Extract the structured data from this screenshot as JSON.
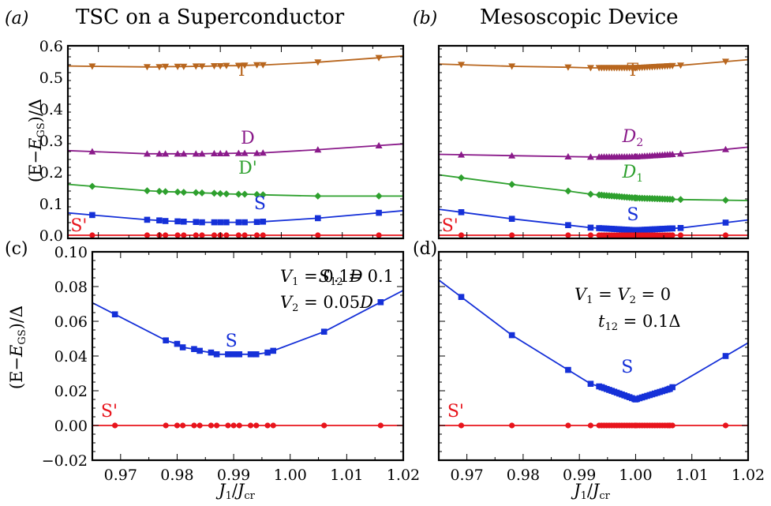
{
  "titles": {
    "a": "TSC on a Superconductor",
    "b": "Mesoscopic Device"
  },
  "panel_labels": {
    "a": "(a)",
    "b": "(b)",
    "c": "(c)",
    "d": "(d)"
  },
  "ylabels": {
    "top": "(E−E_GS)/Δ",
    "bottom": "(E−E_GS)/Δ"
  },
  "xlabel": "J_1/J_cr",
  "annotations": {
    "c": {
      "line1a": "V_1 = 0.1D",
      "line1b": "S_12 = 0.1",
      "line2": "V_2 = 0.05D"
    },
    "d": {
      "line1": "V_1 = V_2 = 0",
      "line2": "t_12 = 0.1Δ"
    }
  },
  "colors": {
    "T": "#b8661e",
    "D": "#8a1a8a",
    "Dp": "#2ea02e",
    "S": "#1530d8",
    "Sp": "#e8141c"
  },
  "chart_data": [
    {
      "id": "a",
      "type": "line",
      "xlim": [
        0.965,
        1.02
      ],
      "ylim": [
        -0.01,
        0.6
      ],
      "yticks": [
        "0.0",
        "0.1",
        "0.2",
        "0.3",
        "0.4",
        "0.5",
        "0.6"
      ],
      "series": [
        {
          "name": "T",
          "key": "T",
          "marker": "tri-down",
          "x": [
            0.969,
            0.978,
            0.98,
            0.981,
            0.983,
            0.984,
            0.986,
            0.987,
            0.989,
            0.99,
            0.991,
            0.993,
            0.994,
            0.996,
            0.997,
            1.006,
            1.016
          ],
          "y": [
            0.535,
            0.533,
            0.533,
            0.534,
            0.534,
            0.534,
            0.535,
            0.535,
            0.536,
            0.536,
            0.537,
            0.537,
            0.538,
            0.539,
            0.539,
            0.548,
            0.562
          ]
        },
        {
          "name": "D",
          "key": "D",
          "marker": "tri-up",
          "x": [
            0.969,
            0.978,
            0.98,
            0.981,
            0.983,
            0.984,
            0.986,
            0.987,
            0.989,
            0.99,
            0.991,
            0.993,
            0.994,
            0.996,
            0.997,
            1.006,
            1.016
          ],
          "y": [
            0.265,
            0.258,
            0.258,
            0.258,
            0.258,
            0.258,
            0.258,
            0.258,
            0.259,
            0.259,
            0.259,
            0.26,
            0.26,
            0.26,
            0.261,
            0.271,
            0.284
          ]
        },
        {
          "name": "D'",
          "key": "Dp",
          "marker": "diamond",
          "x": [
            0.969,
            0.978,
            0.98,
            0.981,
            0.983,
            0.984,
            0.986,
            0.987,
            0.989,
            0.99,
            0.991,
            0.993,
            0.994,
            0.996,
            0.997,
            1.006,
            1.016
          ],
          "y": [
            0.155,
            0.141,
            0.139,
            0.138,
            0.137,
            0.136,
            0.135,
            0.134,
            0.133,
            0.132,
            0.131,
            0.13,
            0.13,
            0.129,
            0.128,
            0.124,
            0.124
          ]
        },
        {
          "name": "S",
          "key": "S",
          "marker": "square",
          "x": [
            0.969,
            0.978,
            0.98,
            0.981,
            0.983,
            0.984,
            0.986,
            0.987,
            0.989,
            0.99,
            0.991,
            0.993,
            0.994,
            0.996,
            0.997,
            1.006,
            1.016
          ],
          "y": [
            0.064,
            0.049,
            0.047,
            0.045,
            0.044,
            0.043,
            0.042,
            0.041,
            0.041,
            0.041,
            0.041,
            0.041,
            0.041,
            0.042,
            0.043,
            0.054,
            0.071
          ]
        },
        {
          "name": "S'",
          "key": "Sp",
          "marker": "circle",
          "x": [
            0.969,
            0.978,
            0.98,
            0.981,
            0.983,
            0.984,
            0.986,
            0.987,
            0.989,
            0.99,
            0.991,
            0.993,
            0.994,
            0.996,
            0.997,
            1.006,
            1.016
          ],
          "y": [
            0,
            0,
            0,
            0,
            0,
            0,
            0,
            0,
            0,
            0,
            0,
            0,
            0,
            0,
            0,
            0,
            0
          ]
        }
      ],
      "labels": {
        "T": "T",
        "D": "D",
        "Dp": "D'",
        "S": "S",
        "Sp": "S'"
      }
    },
    {
      "id": "b",
      "type": "line",
      "xlim": [
        0.965,
        1.02
      ],
      "ylim": [
        -0.01,
        0.6
      ],
      "series": [
        {
          "name": "T",
          "key": "T",
          "marker": "tri-down",
          "dense": true,
          "x": [
            0.969,
            0.978,
            0.988,
            0.992,
            1.0,
            1.008,
            1.016
          ],
          "y": [
            0.54,
            0.535,
            0.532,
            0.53,
            0.53,
            0.538,
            0.55
          ]
        },
        {
          "name": "D_2",
          "key": "D",
          "marker": "tri-up",
          "dense": true,
          "x": [
            0.969,
            0.978,
            0.988,
            0.992,
            1.0,
            1.008,
            1.016
          ],
          "y": [
            0.255,
            0.252,
            0.249,
            0.248,
            0.249,
            0.258,
            0.272
          ]
        },
        {
          "name": "D_1",
          "key": "Dp",
          "marker": "diamond",
          "dense": true,
          "x": [
            0.969,
            0.978,
            0.988,
            0.992,
            1.0,
            1.008,
            1.016
          ],
          "y": [
            0.182,
            0.161,
            0.14,
            0.13,
            0.118,
            0.113,
            0.111
          ]
        },
        {
          "name": "S",
          "key": "S",
          "marker": "square",
          "dense": true,
          "x": [
            0.969,
            0.978,
            0.988,
            0.992,
            1.0,
            1.008,
            1.016
          ],
          "y": [
            0.073,
            0.052,
            0.032,
            0.024,
            0.016,
            0.023,
            0.04
          ]
        },
        {
          "name": "S'",
          "key": "Sp",
          "marker": "circle",
          "dense": true,
          "x": [
            0.969,
            0.978,
            0.988,
            0.992,
            1.0,
            1.008,
            1.016
          ],
          "y": [
            0,
            0,
            0,
            0,
            0,
            0,
            0
          ]
        }
      ],
      "labels": {
        "T": "T",
        "D": "D_2",
        "Dp": "D_1",
        "S": "S",
        "Sp": "S'"
      }
    },
    {
      "id": "c",
      "type": "line",
      "xlim": [
        0.965,
        1.02
      ],
      "ylim": [
        -0.02,
        0.1
      ],
      "xticks": [
        "0.97",
        "0.98",
        "0.99",
        "1.00",
        "1.01",
        "1.02"
      ],
      "yticks": [
        "−0.02",
        "0.00",
        "0.02",
        "0.04",
        "0.06",
        "0.08",
        "0.10"
      ],
      "series": [
        {
          "name": "S",
          "key": "S",
          "marker": "square",
          "x": [
            0.969,
            0.978,
            0.98,
            0.981,
            0.983,
            0.984,
            0.986,
            0.987,
            0.989,
            0.99,
            0.991,
            0.993,
            0.994,
            0.996,
            0.997,
            1.006,
            1.016
          ],
          "y": [
            0.064,
            0.049,
            0.047,
            0.045,
            0.044,
            0.043,
            0.042,
            0.041,
            0.041,
            0.041,
            0.041,
            0.041,
            0.041,
            0.042,
            0.043,
            0.054,
            0.071
          ]
        },
        {
          "name": "S'",
          "key": "Sp",
          "marker": "circle",
          "x": [
            0.969,
            0.978,
            0.98,
            0.981,
            0.983,
            0.984,
            0.986,
            0.987,
            0.989,
            0.99,
            0.991,
            0.993,
            0.994,
            0.996,
            0.997,
            1.006,
            1.016
          ],
          "y": [
            0,
            0,
            0,
            0,
            0,
            0,
            0,
            0,
            0,
            0,
            0,
            0,
            0,
            0,
            0,
            0,
            0
          ]
        }
      ],
      "labels": {
        "S": "S",
        "Sp": "S'"
      }
    },
    {
      "id": "d",
      "type": "line",
      "xlim": [
        0.965,
        1.02
      ],
      "ylim": [
        -0.02,
        0.1
      ],
      "xticks": [
        "0.97",
        "0.98",
        "0.99",
        "1.00",
        "1.01",
        "1.02"
      ],
      "series": [
        {
          "name": "S",
          "key": "S",
          "marker": "square",
          "dense": true,
          "x": [
            0.969,
            0.978,
            0.988,
            0.992,
            0.994,
            1.0,
            1.006,
            1.016
          ],
          "y": [
            0.074,
            0.052,
            0.032,
            0.024,
            0.022,
            0.015,
            0.021,
            0.04
          ]
        },
        {
          "name": "S'",
          "key": "Sp",
          "marker": "circle",
          "dense": true,
          "x": [
            0.969,
            0.978,
            0.988,
            0.992,
            1.0,
            1.006,
            1.016
          ],
          "y": [
            0,
            0,
            0,
            0,
            0,
            0,
            0
          ]
        }
      ],
      "labels": {
        "S": "S",
        "Sp": "S'"
      }
    }
  ]
}
